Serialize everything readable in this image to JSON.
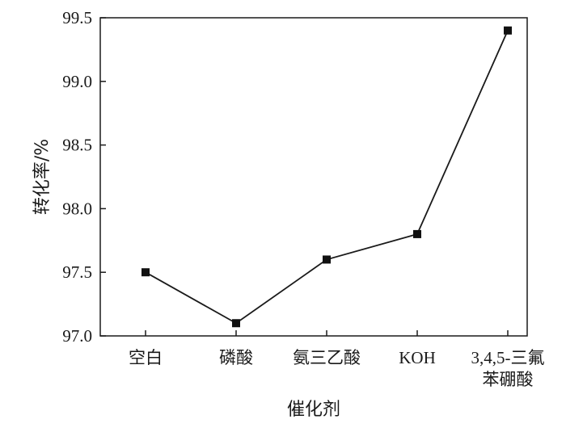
{
  "chart_data": {
    "type": "line",
    "categories": [
      "空白",
      "磷酸",
      "氨三乙酸",
      "KOH",
      "3,4,5-三氟\n苯硼酸"
    ],
    "series": [
      {
        "values": [
          97.5,
          97.1,
          97.6,
          97.8,
          99.4
        ]
      }
    ],
    "xlabel": "催化剂",
    "ylabel": "转化率/%",
    "ylim": [
      97.0,
      99.5
    ],
    "yticks": [
      97.0,
      97.5,
      98.0,
      98.5,
      99.0,
      99.5
    ],
    "ytick_labels": [
      "97.0",
      "97.5",
      "98.0",
      "98.5",
      "99.0",
      "99.5"
    ],
    "grid": false,
    "marker": "square",
    "colors": {
      "line": "#1a1a1a",
      "marker": "#111111",
      "axis": "#1a1a1a"
    }
  }
}
